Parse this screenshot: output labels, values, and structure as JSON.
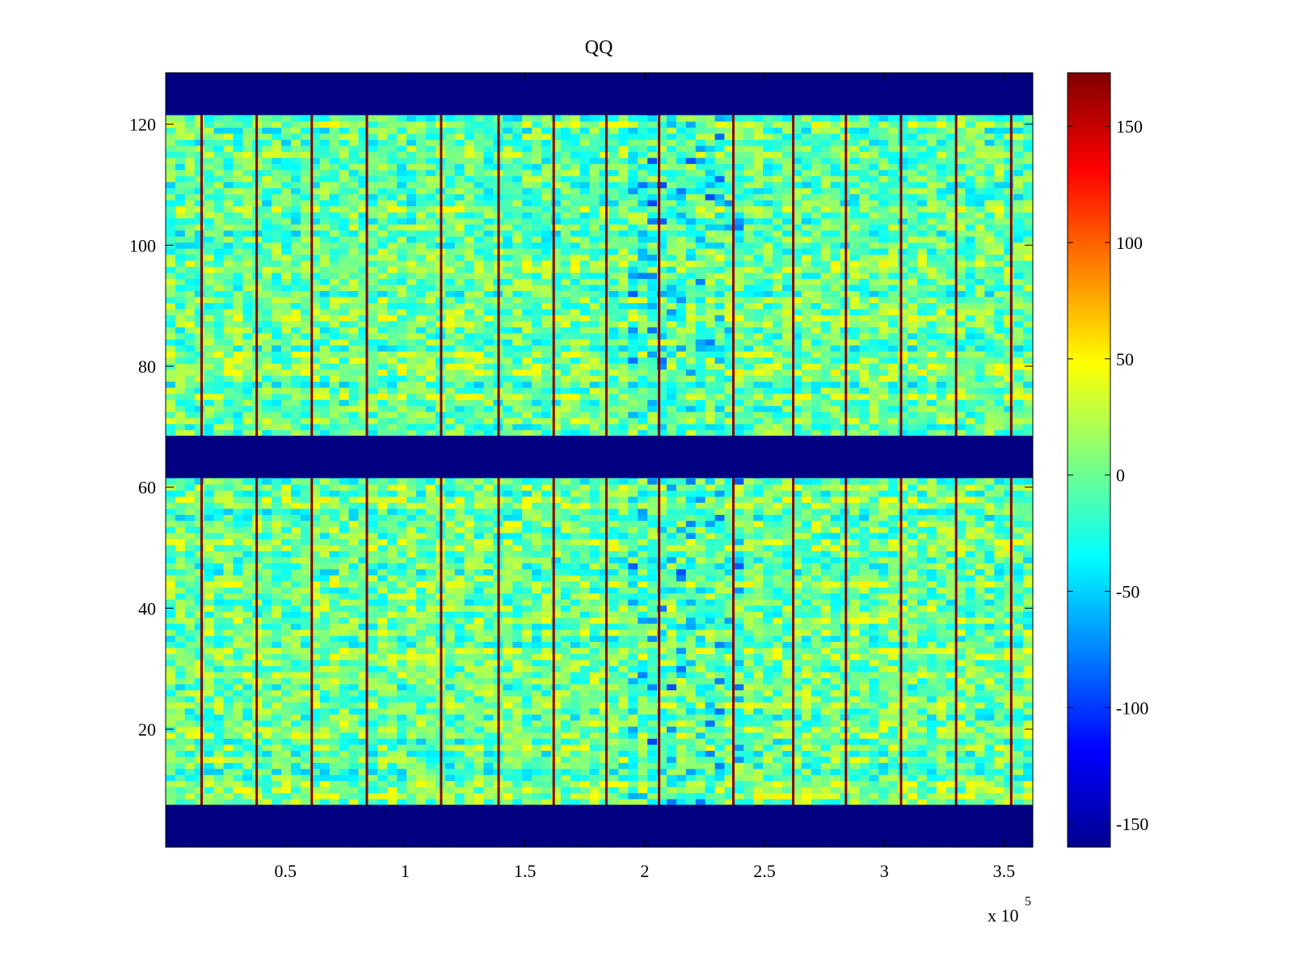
{
  "figure": {
    "title": "QQ",
    "x_exponent_label": "x 10",
    "x_exponent_power": "5"
  },
  "colors": {
    "background": "#ffffff",
    "colormap": "jet",
    "rows_with_no_data": "#00008f"
  },
  "chart_data": {
    "type": "heatmap",
    "title": "QQ",
    "xlabel": "",
    "ylabel": "",
    "xlim": [
      0,
      362000
    ],
    "ylim": [
      0.5,
      128.5
    ],
    "x_scale_note": "x 10^5",
    "x_ticks": [
      0.5,
      1,
      1.5,
      2,
      2.5,
      3,
      3.5
    ],
    "x_tick_labels": [
      "0.5",
      "1",
      "1.5",
      "2",
      "2.5",
      "3",
      "3.5"
    ],
    "y_ticks": [
      20,
      40,
      60,
      80,
      100,
      120
    ],
    "y_tick_labels": [
      "20",
      "40",
      "60",
      "80",
      "100",
      "120"
    ],
    "colorbar": {
      "range": [
        -160,
        173
      ],
      "ticks": [
        -150,
        -100,
        -50,
        0,
        50,
        100,
        150
      ],
      "tick_labels": [
        "-150",
        "-100",
        "-50",
        "0",
        "50",
        "100",
        "150"
      ],
      "colormap": "jet"
    },
    "no_data_row_bands": [
      [
        1,
        7
      ],
      [
        62,
        68
      ],
      [
        122,
        128
      ]
    ],
    "high_value_vertical_lines_x": [
      15000,
      38000,
      61000,
      84000,
      115000,
      139000,
      162000,
      184000,
      206000,
      237000,
      262000,
      284000,
      307000,
      330000,
      353000
    ],
    "low_value_region_x": [
      193000,
      238000
    ],
    "typical_value_range": [
      -40,
      40
    ],
    "line_value": 170,
    "no_data_value": -160,
    "grid": false,
    "legend": "none"
  }
}
